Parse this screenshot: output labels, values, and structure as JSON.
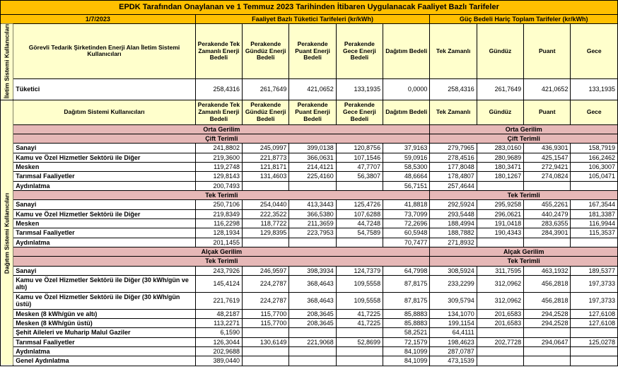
{
  "title": "EPDK Tarafından Onaylanan ve 1 Temmuz 2023 Tarihinden İtibaren Uygulanacak Faaliyet Bazlı Tarifeler",
  "date": "1/7/2023",
  "h1": "Faaliyet Bazlı Tüketici Tarifeleri (kr/kWh)",
  "h2": "Güç Bedeli Hariç Toplam Tarifeler (kr/kWh)",
  "s1": "İletim Sistemi Kullanıcıları",
  "s2": "Dağıtım Sistemi Kullanıcıları",
  "lbl1": "Görevli Tedarik Şirketinden Enerji Alan İletim Sistemi Kullanıcıları",
  "lbl2": "Dağıtım Sistemi Kullanıcıları",
  "c": {
    "a": "Perakende Tek Zamanlı Enerji Bedeli",
    "b": "Perakende Gündüz Enerji Bedeli",
    "c": "Perakende Puant Enerji Bedeli",
    "d": "Perakende Gece Enerji Bedeli",
    "e": "Dağıtım Bedeli",
    "f": "Tek Zamanlı",
    "g": "Gündüz",
    "h": "Puant",
    "i": "Gece"
  },
  "sect": {
    "og": "Orta Gerilim",
    "ct": "Çift Terimli",
    "tt": "Tek Terimli",
    "ag": "Alçak Gerilim"
  },
  "r": {
    "tuketici": "Tüketici",
    "sanayi": "Sanayi",
    "kamu": "Kamu ve Özel Hizmetler Sektörü ile Diğer",
    "mesken": "Mesken",
    "tarim": "Tarımsal Faaliyetler",
    "aydin": "Aydınlatma",
    "kamu30a": "Kamu ve Özel Hizmetler Sektörü ile Diğer (30 kWh/gün ve altı)",
    "kamu30u": "Kamu ve Özel Hizmetler Sektörü ile Diğer (30 kWh/gün üstü)",
    "mesken8a": "Mesken (8 kWh/gün ve altı)",
    "mesken8u": "Mesken (8 kWh/gün üstü)",
    "sehit": "Şehit Aileleri ve Muharip Malul Gaziler",
    "genay": "Genel Aydınlatma"
  },
  "d": {
    "t1": [
      "258,4316",
      "261,7649",
      "421,0652",
      "133,1935",
      "0,0000",
      "258,4316",
      "261,7649",
      "421,0652",
      "133,1935"
    ],
    "ct_sanayi": [
      "241,8802",
      "245,0997",
      "399,0138",
      "120,8756",
      "37,9163",
      "279,7965",
      "283,0160",
      "436,9301",
      "158,7919"
    ],
    "ct_kamu": [
      "219,3600",
      "221,8773",
      "366,0631",
      "107,1546",
      "59,0916",
      "278,4516",
      "280,9689",
      "425,1547",
      "166,2462"
    ],
    "ct_mesken": [
      "119,2748",
      "121,8171",
      "214,4121",
      "47,7707",
      "58,5300",
      "177,8048",
      "180,3471",
      "272,9421",
      "106,3007"
    ],
    "ct_tarim": [
      "129,8143",
      "131,4603",
      "225,4160",
      "56,3807",
      "48,6664",
      "178,4807",
      "180,1267",
      "274,0824",
      "105,0471"
    ],
    "ct_aydin": [
      "200,7493",
      "",
      "",
      "",
      "56,7151",
      "257,4644",
      "",
      "",
      ""
    ],
    "tt_sanayi": [
      "250,7106",
      "254,0440",
      "413,3443",
      "125,4726",
      "41,8818",
      "292,5924",
      "295,9258",
      "455,2261",
      "167,3544"
    ],
    "tt_kamu": [
      "219,8349",
      "222,3522",
      "366,5380",
      "107,6288",
      "73,7099",
      "293,5448",
      "296,0621",
      "440,2479",
      "181,3387"
    ],
    "tt_mesken": [
      "116,2298",
      "118,7722",
      "211,3659",
      "44,7248",
      "72,2696",
      "188,4994",
      "191,0418",
      "283,6355",
      "116,9944"
    ],
    "tt_tarim": [
      "128,1934",
      "129,8395",
      "223,7953",
      "54,7589",
      "60,5948",
      "188,7882",
      "190,4343",
      "284,3901",
      "115,3537"
    ],
    "tt_aydin": [
      "201,1455",
      "",
      "",
      "",
      "70,7477",
      "271,8932",
      "",
      "",
      ""
    ],
    "ag_sanayi": [
      "243,7926",
      "246,9597",
      "398,3934",
      "124,7379",
      "64,7998",
      "308,5924",
      "311,7595",
      "463,1932",
      "189,5377"
    ],
    "ag_kamu30a": [
      "145,4124",
      "224,2787",
      "368,4643",
      "109,5558",
      "87,8175",
      "233,2299",
      "312,0962",
      "456,2818",
      "197,3733"
    ],
    "ag_kamu30u": [
      "221,7619",
      "224,2787",
      "368,4643",
      "109,5558",
      "87,8175",
      "309,5794",
      "312,0962",
      "456,2818",
      "197,3733"
    ],
    "ag_mesken8a": [
      "48,2187",
      "115,7700",
      "208,3645",
      "41,7225",
      "85,8883",
      "134,1070",
      "201,6583",
      "294,2528",
      "127,6108"
    ],
    "ag_mesken8u": [
      "113,2271",
      "115,7700",
      "208,3645",
      "41,7225",
      "85,8883",
      "199,1154",
      "201,6583",
      "294,2528",
      "127,6108"
    ],
    "ag_sehit": [
      "6,1590",
      "",
      "",
      "",
      "58,2521",
      "64,4111",
      "",
      "",
      ""
    ],
    "ag_tarim": [
      "126,3044",
      "130,6149",
      "221,9068",
      "52,8699",
      "72,1579",
      "198,4623",
      "202,7728",
      "294,0647",
      "125,0278"
    ],
    "ag_aydin": [
      "202,9688",
      "",
      "",
      "",
      "84,1099",
      "287,0787",
      "",
      "",
      ""
    ],
    "ag_genay": [
      "389,0440",
      "",
      "",
      "",
      "84,1099",
      "473,1539",
      "",
      "",
      ""
    ]
  }
}
